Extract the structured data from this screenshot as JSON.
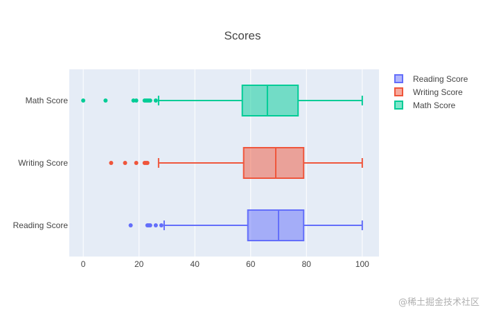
{
  "chart_data": {
    "type": "box",
    "orientation": "horizontal",
    "title": "Scores",
    "xlim": [
      -5,
      106
    ],
    "x_ticks": [
      0,
      20,
      40,
      60,
      80,
      100
    ],
    "categories": [
      "Reading Score",
      "Writing Score",
      "Math Score"
    ],
    "grid": true,
    "legend_placement": "top-right",
    "series": [
      {
        "name": "Reading Score",
        "color": "#636EFA",
        "q1": 59,
        "median": 70,
        "q3": 79,
        "whisker_low": 29,
        "whisker_high": 100,
        "outliers": [
          17,
          23,
          23.5,
          24,
          26,
          28
        ]
      },
      {
        "name": "Writing Score",
        "color": "#EF553B",
        "q1": 57.5,
        "median": 69,
        "q3": 79,
        "whisker_low": 27,
        "whisker_high": 100,
        "outliers": [
          10,
          15,
          19,
          22,
          22.5,
          23
        ]
      },
      {
        "name": "Math Score",
        "color": "#00CC96",
        "q1": 57,
        "median": 66,
        "q3": 77,
        "whisker_low": 27,
        "whisker_high": 100,
        "outliers": [
          0,
          8,
          18,
          19,
          22,
          22.5,
          23,
          23.5,
          24,
          26
        ]
      }
    ]
  },
  "watermark": "@稀土掘金技术社区"
}
